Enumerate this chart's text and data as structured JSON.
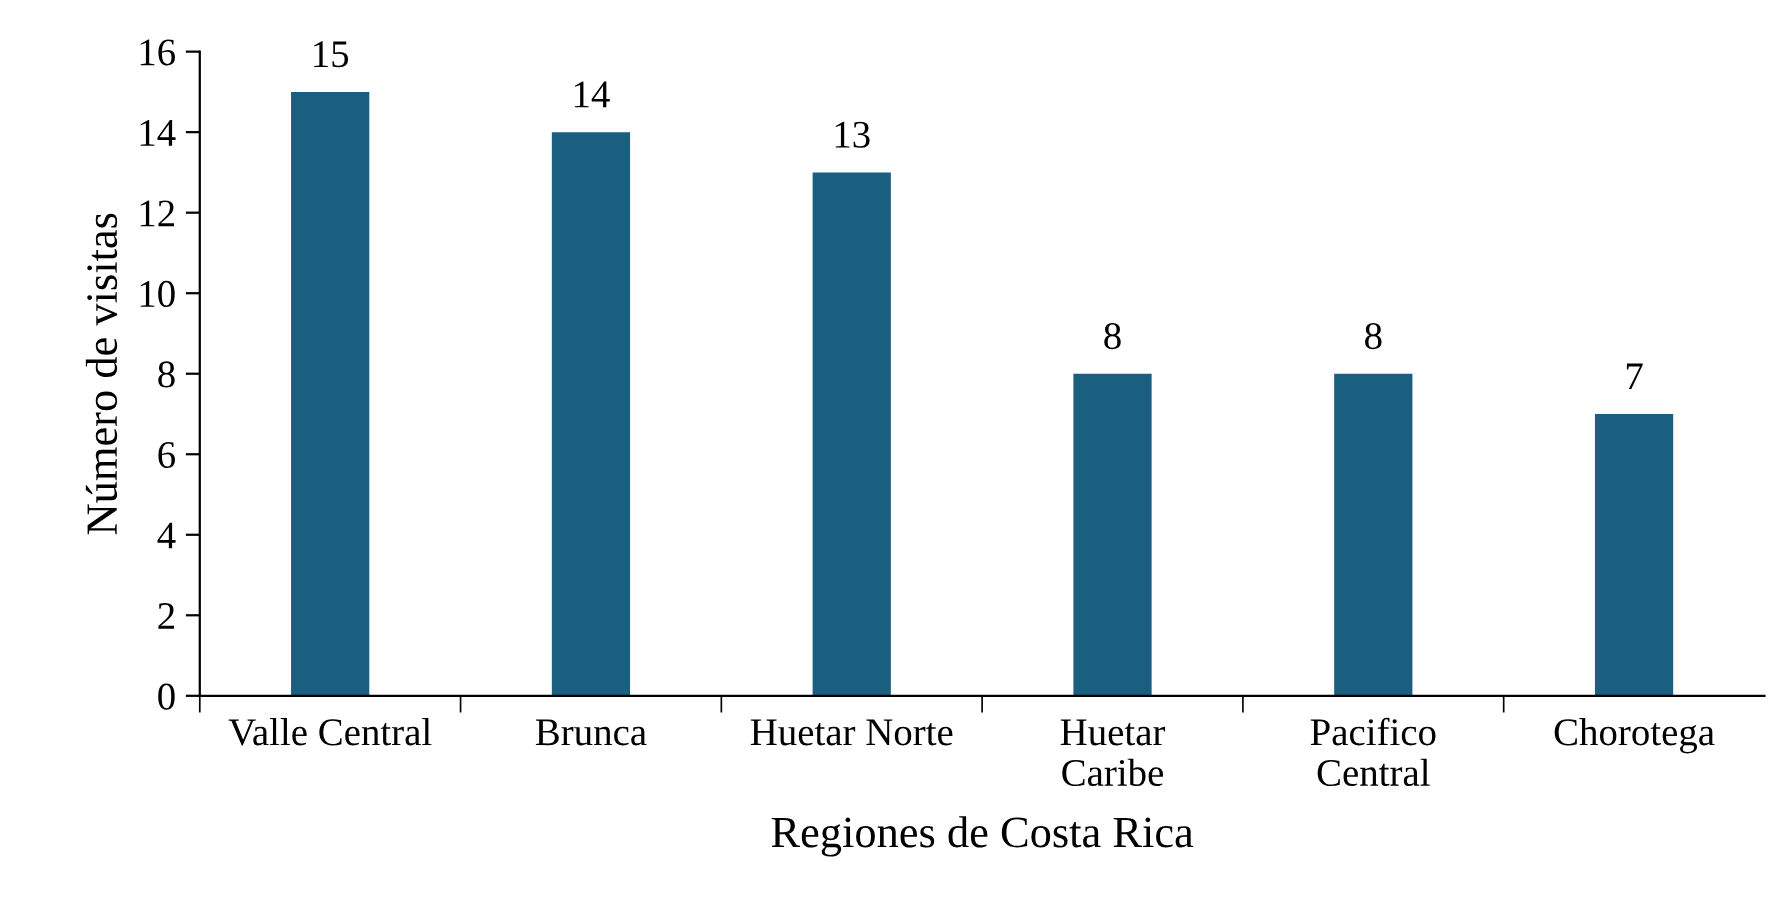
{
  "chart_data": {
    "type": "bar",
    "xlabel": "Regiones de Costa Rica",
    "ylabel": "Número de visitas",
    "categories": [
      "Valle Central",
      "Brunca",
      "Huetar Norte",
      "Huetar\nCaribe",
      "Pacifico\nCentral",
      "Chorotega"
    ],
    "values": [
      15,
      14,
      13,
      8,
      8,
      7
    ],
    "color": "#1a5e80",
    "ylim": [
      0,
      16
    ],
    "yticks": [
      0,
      2,
      4,
      6,
      8,
      10,
      12,
      14,
      16
    ],
    "grid": false,
    "data_labels": true
  }
}
